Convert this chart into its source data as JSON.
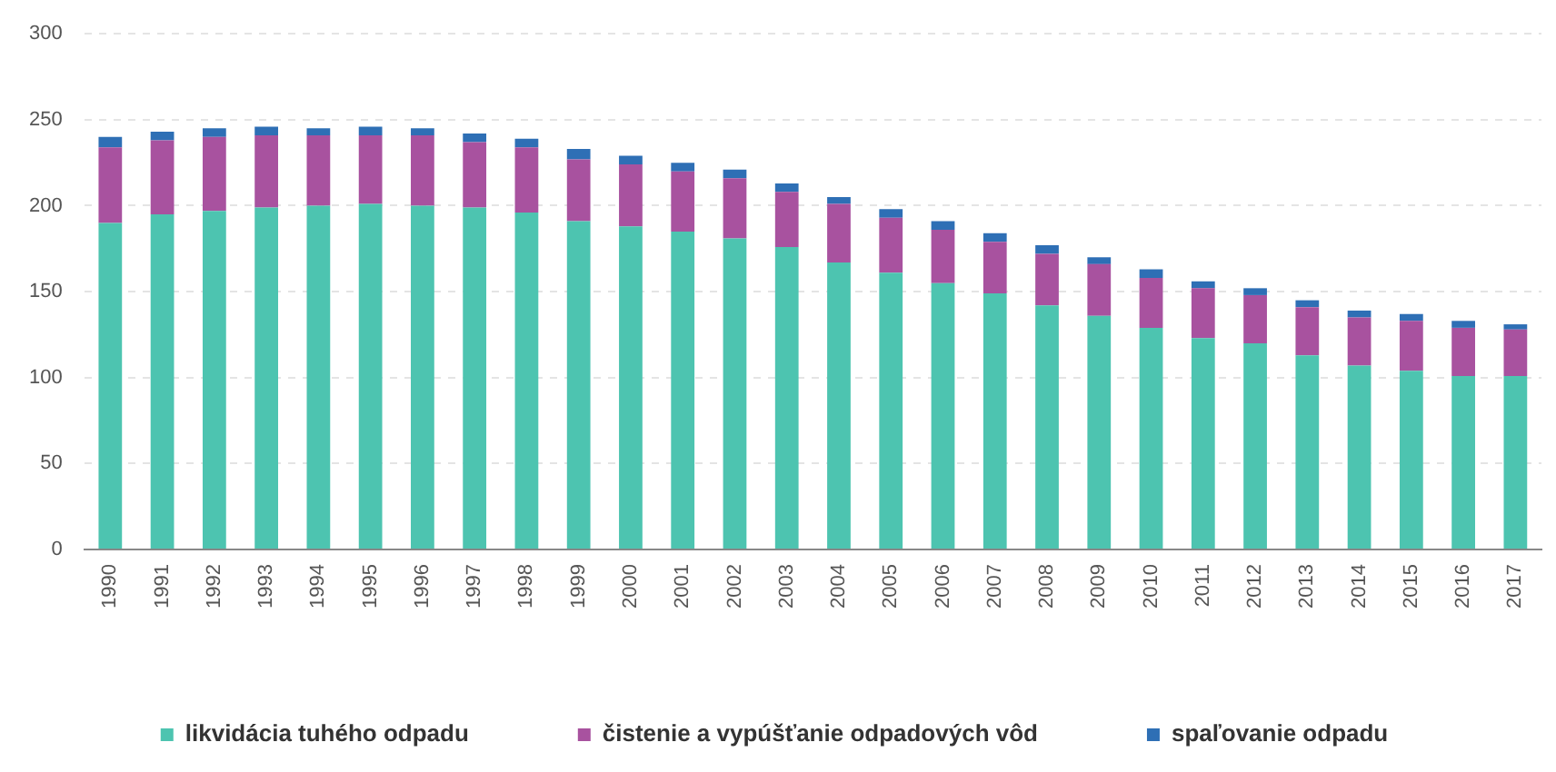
{
  "chart_data": {
    "type": "bar",
    "stacked": true,
    "categories": [
      "1990",
      "1991",
      "1992",
      "1993",
      "1994",
      "1995",
      "1996",
      "1997",
      "1998",
      "1999",
      "2000",
      "2001",
      "2002",
      "2003",
      "2004",
      "2005",
      "2006",
      "2007",
      "2008",
      "2009",
      "2010",
      "2011",
      "2012",
      "2013",
      "2014",
      "2015",
      "2016",
      "2017"
    ],
    "series": [
      {
        "name": "likvidácia tuhého odpadu",
        "color": "#4dc4b0",
        "values": [
          190,
          195,
          197,
          199,
          200,
          201,
          200,
          199,
          196,
          191,
          188,
          185,
          181,
          176,
          167,
          161,
          155,
          149,
          142,
          136,
          129,
          123,
          120,
          113,
          107,
          104,
          101,
          101
        ]
      },
      {
        "name": "čistenie a vypúšťanie odpadových vôd",
        "color": "#a8529f",
        "values": [
          44,
          43,
          43,
          42,
          41,
          40,
          41,
          38,
          38,
          36,
          36,
          35,
          35,
          32,
          34,
          32,
          31,
          30,
          30,
          30,
          29,
          29,
          28,
          28,
          28,
          29,
          28,
          27
        ]
      },
      {
        "name": "spaľovanie odpadu",
        "color": "#2e6fb5",
        "values": [
          6,
          5,
          5,
          5,
          4,
          5,
          4,
          5,
          5,
          6,
          5,
          5,
          5,
          5,
          4,
          5,
          5,
          5,
          5,
          4,
          5,
          4,
          4,
          4,
          4,
          4,
          4,
          3
        ]
      }
    ],
    "ylim": [
      0,
      300
    ],
    "yticks": [
      0,
      50,
      100,
      150,
      200,
      250,
      300
    ],
    "grid": "y",
    "legend": "bottom"
  }
}
